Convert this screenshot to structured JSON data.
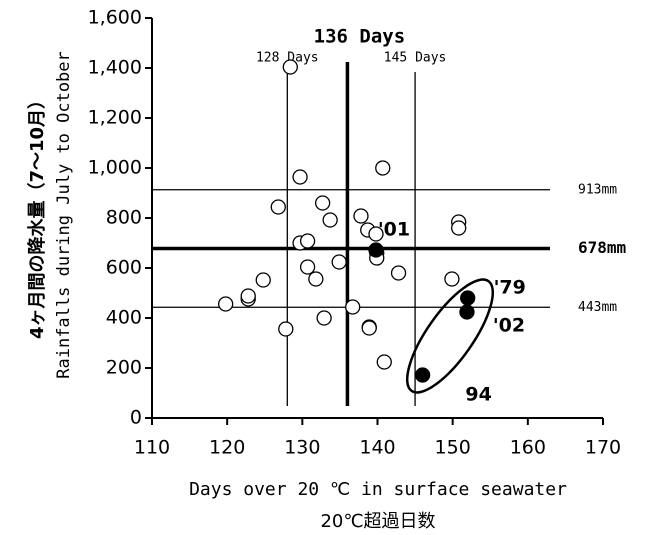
{
  "chart_data": {
    "type": "scatter",
    "xlabel": "Days over 20 ℃ in surface seawater",
    "xlabel_ja": "20℃超過日数",
    "ylabel_ja": "4ヶ月間の降水量（7～10月）",
    "ylabel": "Rainfalls during July to October",
    "xlim": [
      110,
      170
    ],
    "xticks": [
      110,
      120,
      130,
      140,
      150,
      160,
      170
    ],
    "ylim": [
      0,
      1600
    ],
    "yticks": [
      0,
      {
        "value": 200,
        "label": "200"
      },
      {
        "value": 400,
        "label": "400"
      },
      {
        "value": 600,
        "label": "600"
      },
      {
        "value": 800,
        "label": "800"
      },
      {
        "value": 1000,
        "label": "1,000"
      },
      {
        "value": 1200,
        "label": "1,200"
      },
      {
        "value": 1400,
        "label": "1,400"
      },
      {
        "value": 1600,
        "label": "1,600"
      }
    ],
    "series": [
      {
        "marker": "open",
        "color": "#000000",
        "x": [
          128.4,
          140.7,
          129.7,
          126.8,
          132.7,
          133.7,
          137.8,
          138.7,
          139.8,
          129.7,
          130.7,
          139.9,
          139.9,
          130.7,
          134.9,
          131.8,
          124.8,
          142.8,
          149.9,
          150.8,
          150.8,
          119.8,
          122.8,
          122.8,
          136.7,
          127.8,
          132.9,
          138.9,
          138.9,
          140.9
        ],
        "values": [
          1404,
          1000,
          964,
          844,
          860,
          792,
          808,
          752,
          736,
          700,
          708,
          660,
          640,
          604,
          624,
          556,
          552,
          580,
          556,
          784,
          760,
          456,
          476,
          488,
          444,
          356,
          400,
          364,
          360,
          224
        ]
      },
      {
        "marker": "filled",
        "color": "#000000",
        "x": [
          139.8,
          152.0,
          151.9,
          146.0
        ],
        "values": [
          672,
          480,
          424,
          172
        ],
        "point_labels": [
          "'01",
          "'79",
          "'02",
          "94"
        ]
      }
    ],
    "vlines": [
      {
        "value": 128,
        "label": "128 Days"
      },
      {
        "value": 136,
        "label": "136 Days",
        "bold": true
      },
      {
        "value": 145,
        "label": "145 Days"
      }
    ],
    "hlines": [
      {
        "value": 913,
        "label": "913mm"
      },
      {
        "value": 678,
        "label": "678mm",
        "bold": true
      },
      {
        "value": 443,
        "label": "443mm"
      }
    ]
  }
}
